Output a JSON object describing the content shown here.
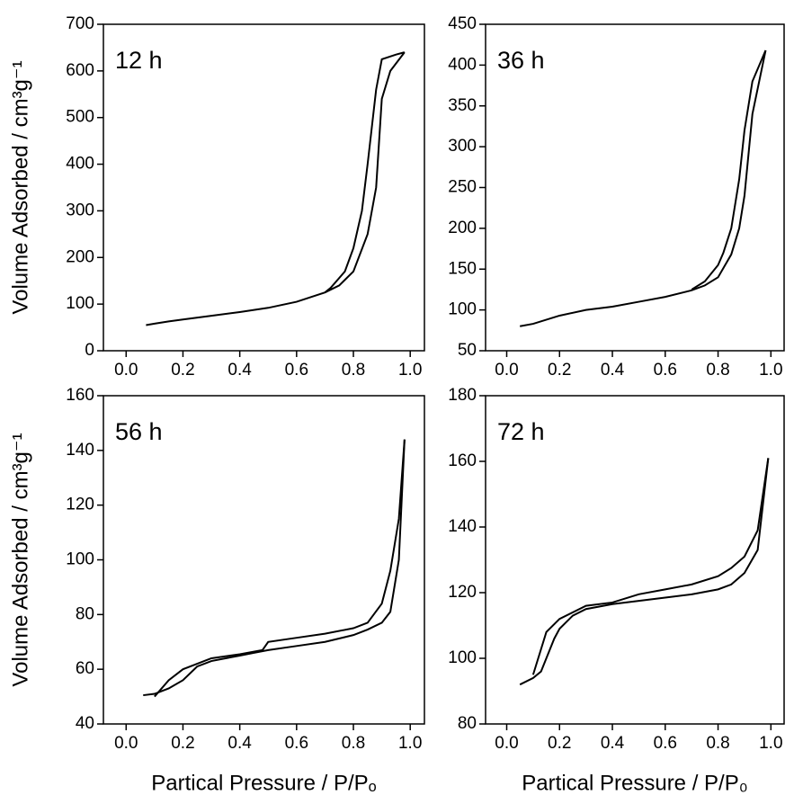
{
  "chart_data": [
    {
      "type": "line",
      "annotation": "12 h",
      "y_label": "Volume Adsorbed / cm³g⁻¹",
      "xlim": [
        -0.08,
        1.05
      ],
      "ylim": [
        0,
        700
      ],
      "xticks": [
        {
          "value": 0,
          "label": "0.0"
        },
        0.2,
        0.4,
        0.6,
        0.8,
        {
          "value": 1,
          "label": "1.0"
        }
      ],
      "yticks": [
        0,
        100,
        200,
        300,
        400,
        500,
        600,
        700
      ],
      "series": [
        {
          "color": "#000000",
          "x": [
            0.07,
            0.1,
            0.15,
            0.2,
            0.3,
            0.4,
            0.5,
            0.6,
            0.7,
            0.75,
            0.8,
            0.85,
            0.88,
            0.9,
            0.93,
            0.98
          ],
          "values": [
            55,
            58,
            63,
            67,
            75,
            83,
            92,
            105,
            125,
            140,
            170,
            250,
            350,
            540,
            600,
            640
          ]
        },
        {
          "color": "#000000",
          "x": [
            0.98,
            0.95,
            0.9,
            0.88,
            0.85,
            0.83,
            0.8,
            0.77,
            0.72,
            0.7
          ],
          "values": [
            640,
            635,
            625,
            560,
            400,
            300,
            220,
            170,
            135,
            125
          ]
        }
      ]
    },
    {
      "type": "line",
      "annotation": "36 h",
      "xlim": [
        -0.08,
        1.05
      ],
      "ylim": [
        50,
        450
      ],
      "xticks": [
        {
          "value": 0,
          "label": "0.0"
        },
        0.2,
        0.4,
        0.6,
        0.8,
        {
          "value": 1,
          "label": "1.0"
        }
      ],
      "yticks": [
        50,
        100,
        150,
        200,
        250,
        300,
        350,
        400,
        450
      ],
      "series": [
        {
          "color": "#000000",
          "x": [
            0.05,
            0.1,
            0.2,
            0.3,
            0.4,
            0.5,
            0.6,
            0.7,
            0.75,
            0.8,
            0.85,
            0.88,
            0.9,
            0.93,
            0.98
          ],
          "values": [
            80,
            83,
            93,
            100,
            104,
            110,
            116,
            124,
            130,
            140,
            168,
            200,
            240,
            340,
            418
          ]
        },
        {
          "color": "#000000",
          "x": [
            0.98,
            0.93,
            0.9,
            0.88,
            0.85,
            0.82,
            0.8,
            0.75,
            0.7
          ],
          "values": [
            418,
            380,
            320,
            260,
            200,
            170,
            155,
            135,
            125
          ]
        }
      ]
    },
    {
      "type": "line",
      "annotation": "56 h",
      "y_label": "Volume Adsorbed / cm³g⁻¹",
      "x_label": "Partical Pressure / P/Pₒ",
      "xlim": [
        -0.08,
        1.05
      ],
      "ylim": [
        40,
        160
      ],
      "xticks": [
        {
          "value": 0,
          "label": "0.0"
        },
        0.2,
        0.4,
        0.6,
        0.8,
        {
          "value": 1,
          "label": "1.0"
        }
      ],
      "yticks": [
        40,
        60,
        80,
        100,
        120,
        140,
        160
      ],
      "series": [
        {
          "color": "#000000",
          "x": [
            0.06,
            0.1,
            0.15,
            0.2,
            0.25,
            0.3,
            0.4,
            0.45,
            0.5,
            0.6,
            0.7,
            0.8,
            0.85,
            0.9,
            0.93,
            0.96,
            0.98
          ],
          "values": [
            50.5,
            51,
            53,
            56,
            61,
            63,
            65,
            66,
            67,
            68.5,
            70,
            72.5,
            74.5,
            77,
            81,
            100,
            144
          ]
        },
        {
          "color": "#000000",
          "x": [
            0.98,
            0.96,
            0.93,
            0.9,
            0.85,
            0.8,
            0.7,
            0.6,
            0.5,
            0.48,
            0.4,
            0.3,
            0.25,
            0.2,
            0.15,
            0.1
          ],
          "values": [
            144,
            115,
            96,
            84,
            77,
            75,
            73,
            71.5,
            70,
            67,
            65.5,
            64,
            62,
            60,
            56,
            50
          ]
        }
      ]
    },
    {
      "type": "line",
      "annotation": "72 h",
      "x_label": "Partical Pressure / P/P₀",
      "xlim": [
        -0.08,
        1.05
      ],
      "ylim": [
        80,
        180
      ],
      "xticks": [
        {
          "value": 0,
          "label": "0.0"
        },
        0.2,
        0.4,
        0.6,
        0.8,
        {
          "value": 1,
          "label": "1.0"
        }
      ],
      "yticks": [
        80,
        100,
        120,
        140,
        160,
        180
      ],
      "series": [
        {
          "color": "#000000",
          "x": [
            0.05,
            0.1,
            0.13,
            0.15,
            0.18,
            0.2,
            0.25,
            0.3,
            0.4,
            0.5,
            0.6,
            0.7,
            0.8,
            0.85,
            0.9,
            0.95,
            0.99
          ],
          "values": [
            92,
            94,
            96,
            100,
            106,
            109,
            113,
            115,
            116.5,
            117.5,
            118.5,
            119.5,
            121,
            122.5,
            126,
            133,
            161
          ]
        },
        {
          "color": "#000000",
          "x": [
            0.99,
            0.95,
            0.9,
            0.85,
            0.8,
            0.7,
            0.6,
            0.5,
            0.4,
            0.3,
            0.2,
            0.15,
            0.1
          ],
          "values": [
            161,
            139,
            131,
            127.5,
            125,
            122.5,
            121,
            119.5,
            117,
            116,
            112,
            108,
            95
          ]
        }
      ]
    }
  ]
}
